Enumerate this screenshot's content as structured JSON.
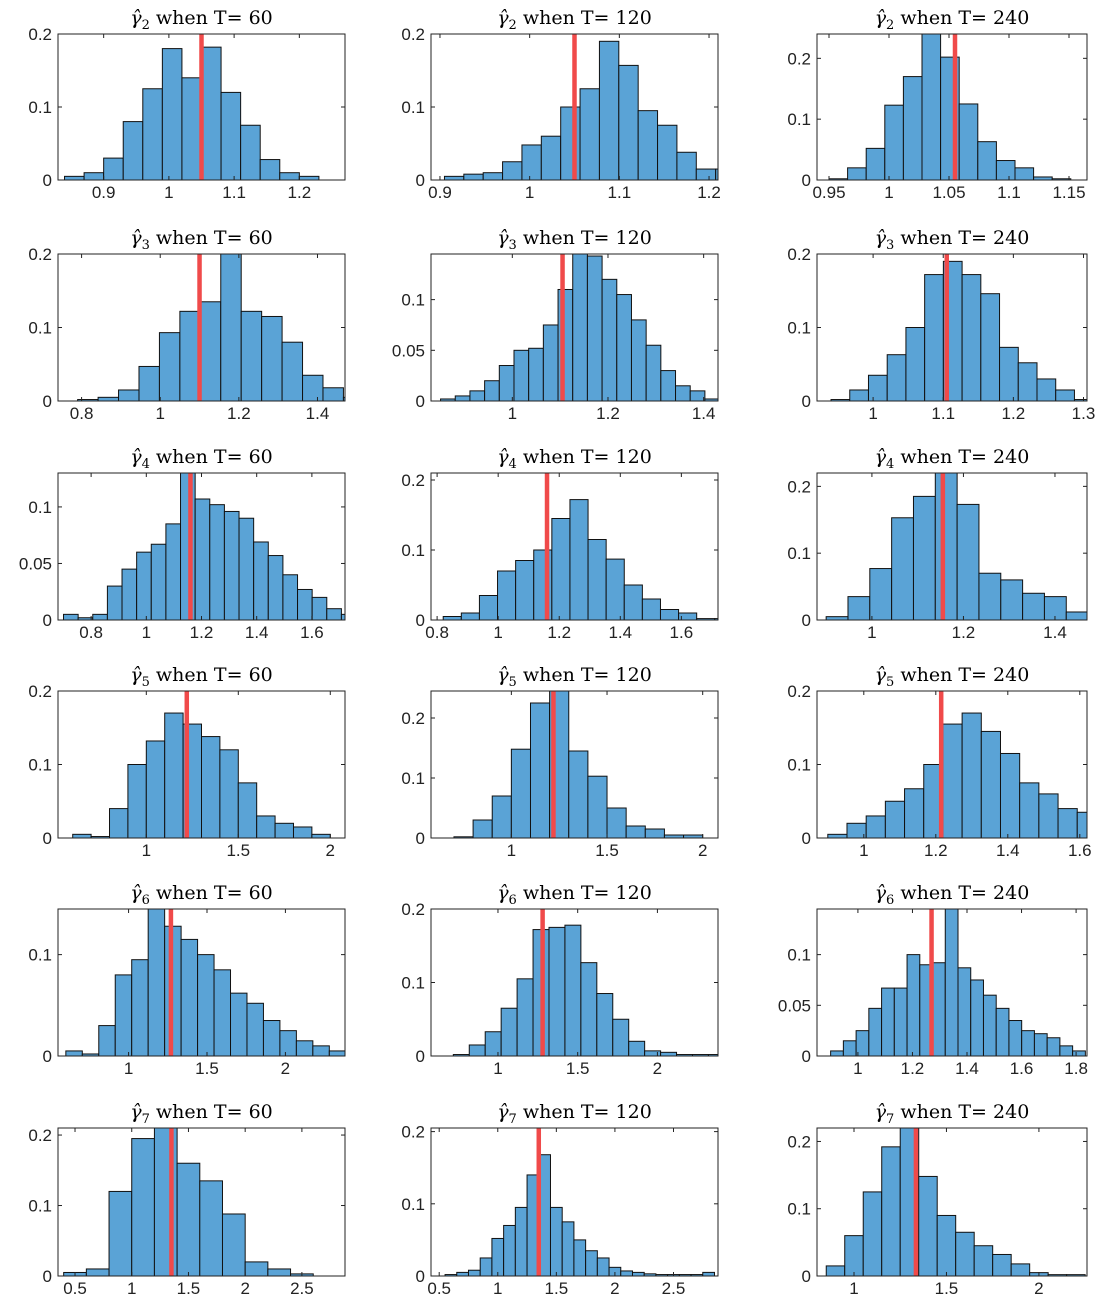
{
  "chart_data": [
    {
      "type": "bar",
      "title_symbol": "γ̂",
      "title_sub": "2",
      "title_rest": " when T= 60",
      "xlim": [
        0.83,
        1.27
      ],
      "ylim": [
        0,
        0.2
      ],
      "xticks": [
        "0.9",
        "1",
        "1.1",
        "1.2"
      ],
      "yticks": [
        "0",
        "0.1",
        "0.2"
      ],
      "bin_start": 0.84,
      "bin_width": 0.03,
      "values": [
        0.005,
        0.01,
        0.03,
        0.08,
        0.125,
        0.18,
        0.14,
        0.182,
        0.12,
        0.075,
        0.028,
        0.01,
        0.005
      ],
      "true_value": 1.05
    },
    {
      "type": "bar",
      "title_symbol": "γ̂",
      "title_sub": "2",
      "title_rest": " when T= 120",
      "xlim": [
        0.89,
        1.21
      ],
      "ylim": [
        0,
        0.2
      ],
      "xticks": [
        "0.9",
        "1",
        "1.1",
        "1.2"
      ],
      "yticks": [
        "0",
        "0.1",
        "0.2"
      ],
      "bin_start": 0.905,
      "bin_width": 0.0216,
      "values": [
        0.005,
        0.008,
        0.01,
        0.025,
        0.048,
        0.06,
        0.1,
        0.125,
        0.19,
        0.157,
        0.095,
        0.075,
        0.038,
        0.015,
        0.015
      ],
      "true_value": 1.05
    },
    {
      "type": "bar",
      "title_symbol": "γ̂",
      "title_sub": "2",
      "title_rest": " when T= 240",
      "xlim": [
        0.94,
        1.165
      ],
      "ylim": [
        0,
        0.24
      ],
      "xticks": [
        "0.95",
        "1",
        "1.05",
        "1.1",
        "1.15"
      ],
      "yticks": [
        "0",
        "0.1",
        "0.2"
      ],
      "bin_start": 0.95,
      "bin_width": 0.0155,
      "values": [
        0.002,
        0.02,
        0.052,
        0.123,
        0.17,
        0.243,
        0.202,
        0.125,
        0.063,
        0.032,
        0.02,
        0.005,
        0.002
      ],
      "true_value": 1.055
    },
    {
      "type": "bar",
      "title_symbol": "γ̂",
      "title_sub": "3",
      "title_rest": " when T= 60",
      "xlim": [
        0.74,
        1.47
      ],
      "ylim": [
        0,
        0.2
      ],
      "xticks": [
        "0.8",
        "1",
        "1.2",
        "1.4"
      ],
      "yticks": [
        "0",
        "0.1",
        "0.2"
      ],
      "bin_start": 0.79,
      "bin_width": 0.052,
      "values": [
        0.002,
        0.005,
        0.015,
        0.047,
        0.093,
        0.122,
        0.135,
        0.2,
        0.122,
        0.115,
        0.08,
        0.035,
        0.018,
        0.005
      ],
      "true_value": 1.1
    },
    {
      "type": "bar",
      "title_symbol": "γ̂",
      "title_sub": "3",
      "title_rest": " when T= 120",
      "xlim": [
        0.83,
        1.43
      ],
      "ylim": [
        0,
        0.145
      ],
      "xticks": [
        "1",
        "1.2",
        "1.4"
      ],
      "yticks": [
        "0",
        "0.05",
        "0.1"
      ],
      "bin_start": 0.85,
      "bin_width": 0.0307,
      "values": [
        0.002,
        0.005,
        0.01,
        0.02,
        0.035,
        0.05,
        0.052,
        0.075,
        0.11,
        0.145,
        0.143,
        0.12,
        0.105,
        0.08,
        0.055,
        0.03,
        0.015,
        0.01,
        0.002,
        0.005
      ],
      "true_value": 1.105
    },
    {
      "type": "bar",
      "title_symbol": "γ̂",
      "title_sub": "3",
      "title_rest": " when T= 240",
      "xlim": [
        0.92,
        1.305
      ],
      "ylim": [
        0,
        0.2
      ],
      "xticks": [
        "1",
        "1.1",
        "1.2",
        "1.3"
      ],
      "yticks": [
        "0",
        "0.1",
        "0.2"
      ],
      "bin_start": 0.94,
      "bin_width": 0.0267,
      "values": [
        0.002,
        0.015,
        0.035,
        0.063,
        0.1,
        0.172,
        0.19,
        0.172,
        0.146,
        0.073,
        0.052,
        0.03,
        0.015,
        0.002
      ],
      "true_value": 1.105
    },
    {
      "type": "bar",
      "title_symbol": "γ̂",
      "title_sub": "4",
      "title_rest": " when T= 60",
      "xlim": [
        0.68,
        1.72
      ],
      "ylim": [
        0,
        0.13
      ],
      "xticks": [
        "0.8",
        "1",
        "1.2",
        "1.4",
        "1.6"
      ],
      "yticks": [
        "0",
        "0.05",
        "0.1"
      ],
      "bin_start": 0.7,
      "bin_width": 0.053,
      "values": [
        0.005,
        0.002,
        0.005,
        0.03,
        0.045,
        0.06,
        0.067,
        0.085,
        0.13,
        0.107,
        0.102,
        0.096,
        0.09,
        0.069,
        0.057,
        0.04,
        0.027,
        0.02,
        0.01,
        0.005
      ],
      "true_value": 1.16
    },
    {
      "type": "bar",
      "title_symbol": "γ̂",
      "title_sub": "4",
      "title_rest": " when T= 120",
      "xlim": [
        0.78,
        1.72
      ],
      "ylim": [
        0,
        0.21
      ],
      "xticks": [
        "0.8",
        "1",
        "1.2",
        "1.4",
        "1.6"
      ],
      "yticks": [
        "0",
        "0.1",
        "0.2"
      ],
      "bin_start": 0.82,
      "bin_width": 0.0593,
      "values": [
        0.005,
        0.01,
        0.035,
        0.07,
        0.085,
        0.1,
        0.145,
        0.172,
        0.115,
        0.087,
        0.05,
        0.03,
        0.015,
        0.01,
        0.002,
        0.002,
        0.005
      ],
      "true_value": 1.16
    },
    {
      "type": "bar",
      "title_symbol": "γ̂",
      "title_sub": "4",
      "title_rest": " when T= 240",
      "xlim": [
        0.88,
        1.47
      ],
      "ylim": [
        0,
        0.22
      ],
      "xticks": [
        "1",
        "1.2",
        "1.4"
      ],
      "yticks": [
        "0",
        "0.1",
        "0.2"
      ],
      "bin_start": 0.9,
      "bin_width": 0.0477,
      "values": [
        0.005,
        0.035,
        0.077,
        0.153,
        0.185,
        0.22,
        0.173,
        0.07,
        0.06,
        0.04,
        0.035,
        0.012
      ],
      "true_value": 1.155
    },
    {
      "type": "bar",
      "title_symbol": "γ̂",
      "title_sub": "5",
      "title_rest": " when T= 60",
      "xlim": [
        0.52,
        2.08
      ],
      "ylim": [
        0,
        0.2
      ],
      "xticks": [
        "1",
        "1.5",
        "2"
      ],
      "yticks": [
        "0",
        "0.1",
        "0.2"
      ],
      "bin_start": 0.6,
      "bin_width": 0.1,
      "values": [
        0.005,
        0.002,
        0.04,
        0.1,
        0.132,
        0.17,
        0.155,
        0.138,
        0.12,
        0.075,
        0.03,
        0.02,
        0.015,
        0.005
      ],
      "true_value": 1.22
    },
    {
      "type": "bar",
      "title_symbol": "γ̂",
      "title_sub": "5",
      "title_rest": " when T= 120",
      "xlim": [
        0.58,
        2.08
      ],
      "ylim": [
        0,
        0.245
      ],
      "xticks": [
        "1",
        "1.5",
        "2"
      ],
      "yticks": [
        "0",
        "0.1",
        "0.2"
      ],
      "bin_start": 0.7,
      "bin_width": 0.1,
      "values": [
        0.002,
        0.03,
        0.07,
        0.148,
        0.225,
        0.245,
        0.145,
        0.103,
        0.05,
        0.02,
        0.015,
        0.005,
        0.005
      ],
      "true_value": 1.22
    },
    {
      "type": "bar",
      "title_symbol": "γ̂",
      "title_sub": "5",
      "title_rest": " when T= 240",
      "xlim": [
        0.87,
        1.62
      ],
      "ylim": [
        0,
        0.2
      ],
      "xticks": [
        "1",
        "1.2",
        "1.4",
        "1.6"
      ],
      "yticks": [
        "0",
        "0.1",
        "0.2"
      ],
      "bin_start": 0.9,
      "bin_width": 0.0533,
      "values": [
        0.005,
        0.02,
        0.03,
        0.05,
        0.067,
        0.1,
        0.155,
        0.17,
        0.145,
        0.115,
        0.075,
        0.06,
        0.04,
        0.035,
        0.01
      ],
      "true_value": 1.215
    },
    {
      "type": "bar",
      "title_symbol": "γ̂",
      "title_sub": "6",
      "title_rest": " when T= 60",
      "xlim": [
        0.55,
        2.38
      ],
      "ylim": [
        0,
        0.145
      ],
      "xticks": [
        "1",
        "1.5",
        "2"
      ],
      "yticks": [
        "0",
        "0.1"
      ],
      "bin_start": 0.6,
      "bin_width": 0.105,
      "values": [
        0.005,
        0.002,
        0.03,
        0.08,
        0.095,
        0.145,
        0.128,
        0.115,
        0.1,
        0.085,
        0.062,
        0.052,
        0.035,
        0.025,
        0.015,
        0.01,
        0.005
      ],
      "true_value": 1.27
    },
    {
      "type": "bar",
      "title_symbol": "γ̂",
      "title_sub": "6",
      "title_rest": " when T= 120",
      "xlim": [
        0.58,
        2.38
      ],
      "ylim": [
        0,
        0.2
      ],
      "xticks": [
        "1",
        "1.5",
        "2"
      ],
      "yticks": [
        "0",
        "0.1",
        "0.2"
      ],
      "bin_start": 0.72,
      "bin_width": 0.1,
      "values": [
        0.002,
        0.015,
        0.033,
        0.065,
        0.105,
        0.172,
        0.175,
        0.178,
        0.127,
        0.085,
        0.05,
        0.02,
        0.007,
        0.005,
        0.002,
        0.002,
        0.002,
        0.005
      ],
      "true_value": 1.28
    },
    {
      "type": "bar",
      "title_symbol": "γ̂",
      "title_sub": "6",
      "title_rest": " when T= 240",
      "xlim": [
        0.85,
        1.84
      ],
      "ylim": [
        0,
        0.145
      ],
      "xticks": [
        "1",
        "1.2",
        "1.4",
        "1.6",
        "1.8"
      ],
      "yticks": [
        "0",
        "0.05",
        "0.1"
      ],
      "bin_start": 0.9,
      "bin_width": 0.0467,
      "values": [
        0.005,
        0.015,
        0.025,
        0.047,
        0.067,
        0.067,
        0.1,
        0.09,
        0.092,
        0.145,
        0.087,
        0.075,
        0.06,
        0.047,
        0.035,
        0.025,
        0.022,
        0.018,
        0.01,
        0.005
      ],
      "true_value": 1.27
    },
    {
      "type": "bar",
      "title_symbol": "γ̂",
      "title_sub": "7",
      "title_rest": " when T= 60",
      "xlim": [
        0.35,
        2.88
      ],
      "ylim": [
        0,
        0.21
      ],
      "xticks": [
        "0.5",
        "1",
        "1.5",
        "2",
        "2.5"
      ],
      "yticks": [
        "0",
        "0.1",
        "0.2"
      ],
      "bin_start": 0.4,
      "bin_width": 0.2,
      "values": [
        0.005,
        0.01,
        0.12,
        0.195,
        0.21,
        0.16,
        0.135,
        0.088,
        0.02,
        0.01,
        0.003
      ],
      "true_value": 1.35
    },
    {
      "type": "bar",
      "title_symbol": "γ̂",
      "title_sub": "7",
      "title_rest": " when T= 120",
      "xlim": [
        0.43,
        2.88
      ],
      "ylim": [
        0,
        0.205
      ],
      "xticks": [
        "0.5",
        "1",
        "1.5",
        "2",
        "2.5"
      ],
      "yticks": [
        "0",
        "0.1",
        "0.2"
      ],
      "bin_start": 0.55,
      "bin_width": 0.1,
      "values": [
        0.002,
        0.005,
        0.008,
        0.025,
        0.052,
        0.07,
        0.095,
        0.14,
        0.168,
        0.095,
        0.075,
        0.05,
        0.035,
        0.025,
        0.012,
        0.007,
        0.005,
        0.003,
        0.002,
        0.002,
        0.002,
        0.002,
        0.005
      ],
      "true_value": 1.35
    },
    {
      "type": "bar",
      "title_symbol": "γ̂",
      "title_sub": "7",
      "title_rest": " when T= 240",
      "xlim": [
        0.8,
        2.26
      ],
      "ylim": [
        0,
        0.22
      ],
      "xticks": [
        "1",
        "1.5",
        "2"
      ],
      "yticks": [
        "0",
        "0.1",
        "0.2"
      ],
      "bin_start": 0.85,
      "bin_width": 0.1,
      "values": [
        0.015,
        0.06,
        0.125,
        0.192,
        0.22,
        0.148,
        0.09,
        0.065,
        0.045,
        0.032,
        0.018,
        0.005,
        0.002,
        0.002
      ],
      "true_value": 1.335
    }
  ],
  "colors": {
    "bar_fill": "#5aa3d6",
    "bar_edge": "#111111",
    "true_line": "#f04a4a"
  }
}
